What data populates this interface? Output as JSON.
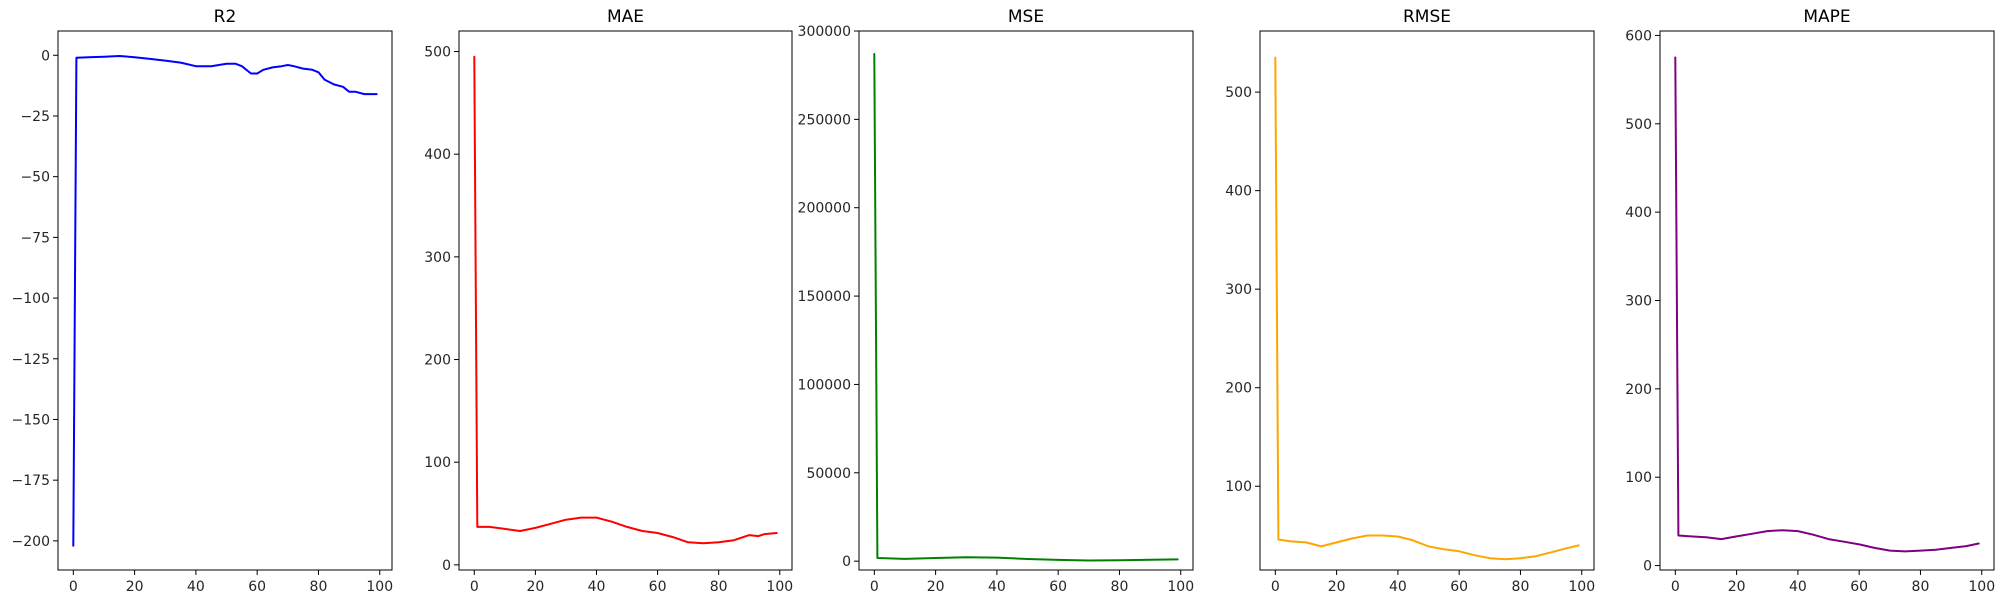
{
  "chart_data": [
    {
      "type": "line",
      "title": "R2",
      "color": "#0000ff",
      "xlim": [
        -5,
        104
      ],
      "ylim": [
        -212,
        10
      ],
      "xticks": [
        0,
        20,
        40,
        60,
        80,
        100
      ],
      "yticks": [
        0,
        -25,
        -50,
        -75,
        -100,
        -125,
        -150,
        -175,
        -200
      ],
      "ytick_labels": [
        "0",
        "−25",
        "−50",
        "−75",
        "−100",
        "−125",
        "−150",
        "−175",
        "−200"
      ],
      "series": [
        {
          "x": [
            0,
            1,
            5,
            10,
            15,
            20,
            25,
            30,
            35,
            40,
            45,
            50,
            53,
            55,
            58,
            60,
            62,
            65,
            68,
            70,
            72,
            75,
            78,
            80,
            82,
            85,
            88,
            90,
            92,
            95,
            97,
            99
          ],
          "y": [
            -202,
            -1,
            -0.8,
            -0.6,
            -0.3,
            -0.8,
            -1.5,
            -2.2,
            -3,
            -4.5,
            -4.5,
            -3.5,
            -3.5,
            -4.5,
            -7.5,
            -7.5,
            -6,
            -5,
            -4.5,
            -4,
            -4.5,
            -5.5,
            -6,
            -7,
            -10,
            -12,
            -13,
            -15,
            -15,
            -16,
            -16,
            -16
          ]
        }
      ]
    },
    {
      "type": "line",
      "title": "MAE",
      "color": "#ff0000",
      "xlim": [
        -5,
        104
      ],
      "ylim": [
        -5,
        520
      ],
      "xticks": [
        0,
        20,
        40,
        60,
        80,
        100
      ],
      "yticks": [
        0,
        100,
        200,
        300,
        400,
        500
      ],
      "ytick_labels": [
        "0",
        "100",
        "200",
        "300",
        "400",
        "500"
      ],
      "series": [
        {
          "x": [
            0,
            1,
            5,
            10,
            15,
            20,
            25,
            30,
            35,
            40,
            45,
            50,
            55,
            60,
            65,
            70,
            75,
            80,
            85,
            90,
            93,
            95,
            99
          ],
          "y": [
            495,
            37,
            37,
            35,
            33,
            36,
            40,
            44,
            46,
            46,
            42,
            37,
            33,
            31,
            27,
            22,
            21,
            22,
            24,
            29,
            28,
            30,
            31
          ]
        }
      ]
    },
    {
      "type": "line",
      "title": "MSE",
      "color": "#008000",
      "xlim": [
        -5,
        104
      ],
      "ylim": [
        -5000,
        300000
      ],
      "xticks": [
        0,
        20,
        40,
        60,
        80,
        100
      ],
      "yticks": [
        0,
        50000,
        100000,
        150000,
        200000,
        250000,
        300000
      ],
      "ytick_labels": [
        "0",
        "50000",
        "100000",
        "150000",
        "200000",
        "250000",
        "300000"
      ],
      "series": [
        {
          "x": [
            0,
            1,
            10,
            20,
            30,
            40,
            50,
            60,
            70,
            80,
            90,
            99
          ],
          "y": [
            287000,
            1800,
            1300,
            1800,
            2200,
            2000,
            1200,
            700,
            400,
            500,
            800,
            1000
          ]
        }
      ]
    },
    {
      "type": "line",
      "title": "RMSE",
      "color": "#ffa500",
      "xlim": [
        -5,
        104
      ],
      "ylim": [
        15,
        562
      ],
      "xticks": [
        0,
        20,
        40,
        60,
        80,
        100
      ],
      "yticks": [
        100,
        200,
        300,
        400,
        500
      ],
      "ytick_labels": [
        "100",
        "200",
        "300",
        "400",
        "500"
      ],
      "series": [
        {
          "x": [
            0,
            1,
            5,
            10,
            15,
            20,
            25,
            30,
            35,
            40,
            45,
            50,
            55,
            60,
            65,
            70,
            75,
            80,
            85,
            90,
            95,
            99
          ],
          "y": [
            535,
            46,
            44,
            43,
            39,
            43,
            47,
            50,
            50,
            49,
            45,
            39,
            36,
            34,
            30,
            27,
            26,
            27,
            29,
            33,
            37,
            40
          ]
        }
      ]
    },
    {
      "type": "line",
      "title": "MAPE",
      "color": "#800080",
      "xlim": [
        -5,
        104
      ],
      "ylim": [
        -5,
        605
      ],
      "xticks": [
        0,
        20,
        40,
        60,
        80,
        100
      ],
      "yticks": [
        0,
        100,
        200,
        300,
        400,
        500,
        600
      ],
      "ytick_labels": [
        "0",
        "100",
        "200",
        "300",
        "400",
        "500",
        "600"
      ],
      "series": [
        {
          "x": [
            0,
            1,
            5,
            10,
            15,
            20,
            25,
            30,
            35,
            40,
            45,
            50,
            55,
            60,
            65,
            70,
            75,
            80,
            85,
            90,
            95,
            99
          ],
          "y": [
            575,
            34,
            33,
            32,
            30,
            33,
            36,
            39,
            40,
            39,
            35,
            30,
            27,
            24,
            20,
            17,
            16,
            17,
            18,
            20,
            22,
            25
          ]
        }
      ]
    }
  ]
}
